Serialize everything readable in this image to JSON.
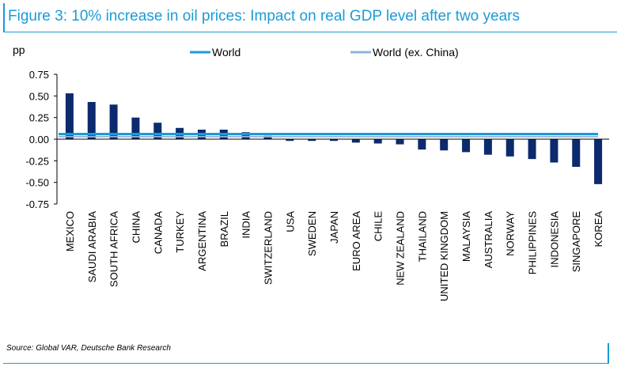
{
  "title": "Figure 3: 10% increase in oil prices: Impact on real GDP level after two years",
  "source": "Source: Global VAR, Deutsche Bank Research",
  "colors": {
    "accent": "#1a9bd7",
    "bar": "#0c2a6e",
    "world": "#1a9bd7",
    "world_ex_china": "#8fb4dd"
  },
  "chart_data": {
    "type": "bar",
    "ylabel": "pp",
    "ylim": [
      -0.75,
      0.75
    ],
    "yticks": [
      "0.75",
      "0.50",
      "0.25",
      "0.00",
      "-0.25",
      "-0.50",
      "-0.75"
    ],
    "categories": [
      "MEXICO",
      "SAUDI ARABIA",
      "SOUTH AFRICA",
      "CHINA",
      "CANADA",
      "TURKEY",
      "ARGENTINA",
      "BRAZIL",
      "INDIA",
      "SWITZERLAND",
      "USA",
      "SWEDEN",
      "JAPAN",
      "EURO AREA",
      "CHILE",
      "NEW ZEALAND",
      "THAILAND",
      "UNITED KINGDOM",
      "MALAYSIA",
      "AUSTRALIA",
      "NORWAY",
      "PHILIPPINES",
      "INDONESIA",
      "SINGAPORE",
      "KOREA"
    ],
    "values": [
      0.53,
      0.43,
      0.4,
      0.25,
      0.19,
      0.13,
      0.11,
      0.11,
      0.08,
      0.04,
      -0.02,
      -0.02,
      -0.02,
      -0.04,
      -0.05,
      -0.06,
      -0.12,
      -0.13,
      -0.15,
      -0.18,
      -0.2,
      -0.23,
      -0.27,
      -0.32,
      -0.52
    ],
    "reference_lines": [
      {
        "name": "World",
        "value": 0.06,
        "color": "#1a9bd7"
      },
      {
        "name": "World (ex. China)",
        "value": 0.03,
        "color": "#8fb4dd"
      }
    ],
    "legend_position": "top",
    "grid": false
  }
}
